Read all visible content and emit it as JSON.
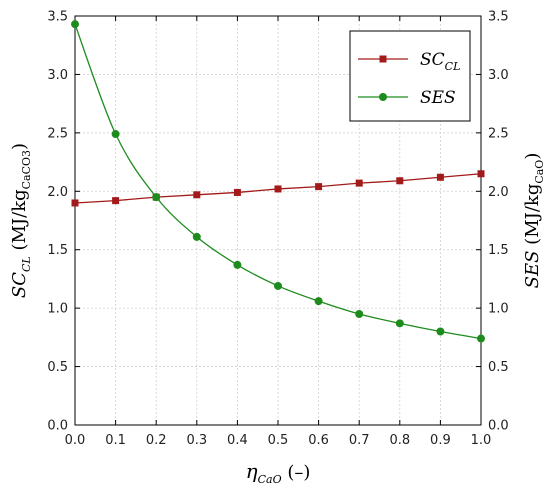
{
  "chart_data": {
    "type": "line",
    "x": [
      0.0,
      0.1,
      0.2,
      0.3,
      0.4,
      0.5,
      0.6,
      0.7,
      0.8,
      0.9,
      1.0
    ],
    "series": [
      {
        "name": "SC_CL",
        "name_main": "SC",
        "name_sub": "CL",
        "color": "#a31a1a",
        "marker": "square",
        "values": [
          1.9,
          1.92,
          1.95,
          1.97,
          1.99,
          2.02,
          2.04,
          2.07,
          2.09,
          2.12,
          2.15
        ]
      },
      {
        "name": "SES",
        "name_main": "SES",
        "name_sub": "",
        "color": "#1d8c1d",
        "marker": "circle",
        "values": [
          3.43,
          2.49,
          1.95,
          1.61,
          1.37,
          1.19,
          1.06,
          0.95,
          0.87,
          0.8,
          0.74
        ]
      }
    ],
    "xlim": [
      0.0,
      1.0
    ],
    "ylim": [
      0.0,
      3.5
    ],
    "xticks": [
      "0.0",
      "0.1",
      "0.2",
      "0.3",
      "0.4",
      "0.5",
      "0.6",
      "0.7",
      "0.8",
      "0.9",
      "1.0"
    ],
    "yticks": [
      "0.0",
      "0.5",
      "1.0",
      "1.5",
      "2.0",
      "2.5",
      "3.0",
      "3.5"
    ],
    "xlabel": {
      "main": "η",
      "sub": "CaO",
      "rest": " (–)"
    },
    "ylabel_left": {
      "main": "SC",
      "sub": "CL",
      "rest": " (MJ/kg",
      "sub2": "CaCO3",
      "end": ")"
    },
    "ylabel_right": {
      "main": "SES",
      "rest": " (MJ/kg",
      "sub2": "CaO",
      "end": ")"
    },
    "grid": true,
    "legend_position": "top-right"
  }
}
